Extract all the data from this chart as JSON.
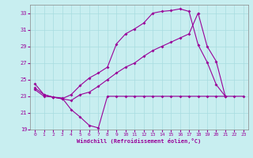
{
  "xlabel": "Windchill (Refroidissement éolien,°C)",
  "bg_color": "#c8eef0",
  "line_color": "#990099",
  "grid_color": "#a8dce0",
  "xlim": [
    -0.5,
    23.5
  ],
  "ylim": [
    19,
    34
  ],
  "yticks": [
    19,
    21,
    23,
    25,
    27,
    29,
    31,
    33
  ],
  "xticks": [
    0,
    1,
    2,
    3,
    4,
    5,
    6,
    7,
    8,
    9,
    10,
    11,
    12,
    13,
    14,
    15,
    16,
    17,
    18,
    19,
    20,
    21,
    22,
    23
  ],
  "series1_x": [
    0,
    1,
    2,
    3,
    4,
    5,
    6,
    7,
    8,
    9,
    10,
    11,
    12,
    13,
    14,
    15,
    16,
    17,
    18,
    19,
    20,
    21,
    22,
    23
  ],
  "series1_y": [
    24.5,
    23.2,
    22.9,
    22.8,
    21.4,
    20.5,
    19.5,
    19.2,
    23.0,
    23.0,
    23.0,
    23.0,
    23.0,
    23.0,
    23.0,
    23.0,
    23.0,
    23.0,
    23.0,
    23.0,
    23.0,
    23.0,
    23.0,
    23.0
  ],
  "series2_x": [
    0,
    1,
    2,
    3,
    4,
    5,
    6,
    7,
    8,
    9,
    10,
    11,
    12,
    13,
    14,
    15,
    16,
    17,
    18,
    19,
    20,
    21,
    22,
    23
  ],
  "series2_y": [
    24.0,
    23.2,
    22.9,
    22.7,
    23.2,
    24.3,
    25.2,
    25.8,
    26.5,
    29.3,
    30.5,
    31.1,
    31.8,
    33.0,
    33.2,
    33.3,
    33.5,
    33.2,
    29.2,
    27.1,
    24.4,
    23.0,
    null,
    null
  ],
  "series3_x": [
    0,
    1,
    2,
    3,
    4,
    5,
    6,
    7,
    8,
    9,
    10,
    11,
    12,
    13,
    14,
    15,
    16,
    17,
    18,
    19,
    20,
    21,
    22,
    23
  ],
  "series3_y": [
    23.8,
    23.0,
    22.9,
    22.7,
    22.5,
    23.2,
    23.5,
    24.2,
    25.0,
    25.8,
    26.5,
    27.0,
    27.8,
    28.5,
    29.0,
    29.5,
    30.0,
    30.5,
    33.0,
    29.0,
    27.2,
    23.0,
    null,
    null
  ]
}
